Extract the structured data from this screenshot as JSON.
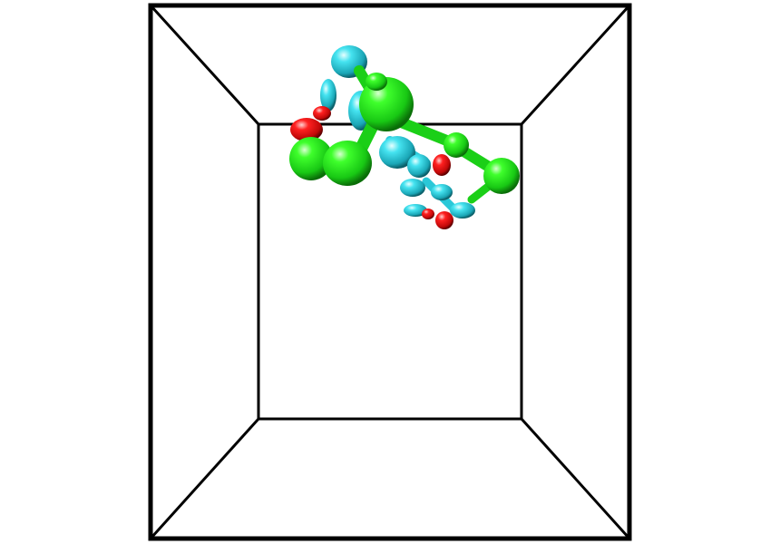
{
  "scene": {
    "background": "#ffffff",
    "box_color": "#000000",
    "colors": {
      "green": "#22dd1e",
      "cyan": "#2ac8d8",
      "red": "#e01010"
    }
  }
}
